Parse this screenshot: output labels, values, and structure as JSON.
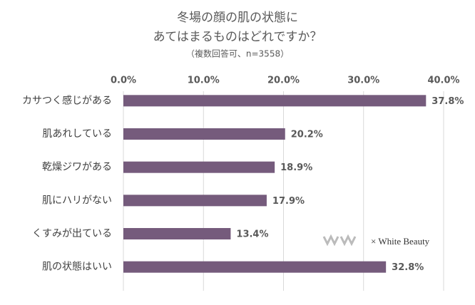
{
  "chart_data": {
    "type": "bar",
    "orientation": "horizontal",
    "title": [
      "冬場の顔の肌の状態に",
      "あてはまるものはどれですか？"
    ],
    "subtitle": "（複数回答可、n=3558）",
    "categories": [
      "カサつく感じがある",
      "肌あれしている",
      "乾燥ジワがある",
      "肌にハリがない",
      "くすみが出ている",
      "肌の状態はいい"
    ],
    "values": [
      37.8,
      20.2,
      18.9,
      17.9,
      13.4,
      32.8
    ],
    "value_labels": [
      "37.8%",
      "20.2%",
      "18.9%",
      "17.9%",
      "13.4%",
      "32.8%"
    ],
    "color": "#755b7c",
    "xlim": [
      0,
      40
    ],
    "xticks": [
      {
        "value": 0,
        "label": "0.0%"
      },
      {
        "value": 10,
        "label": "10.0%"
      },
      {
        "value": 20,
        "label": "20.0%"
      },
      {
        "value": 30,
        "label": "30.0%"
      },
      {
        "value": 40,
        "label": "40.0%"
      }
    ],
    "grid": true,
    "watermark": "× White Beauty"
  }
}
